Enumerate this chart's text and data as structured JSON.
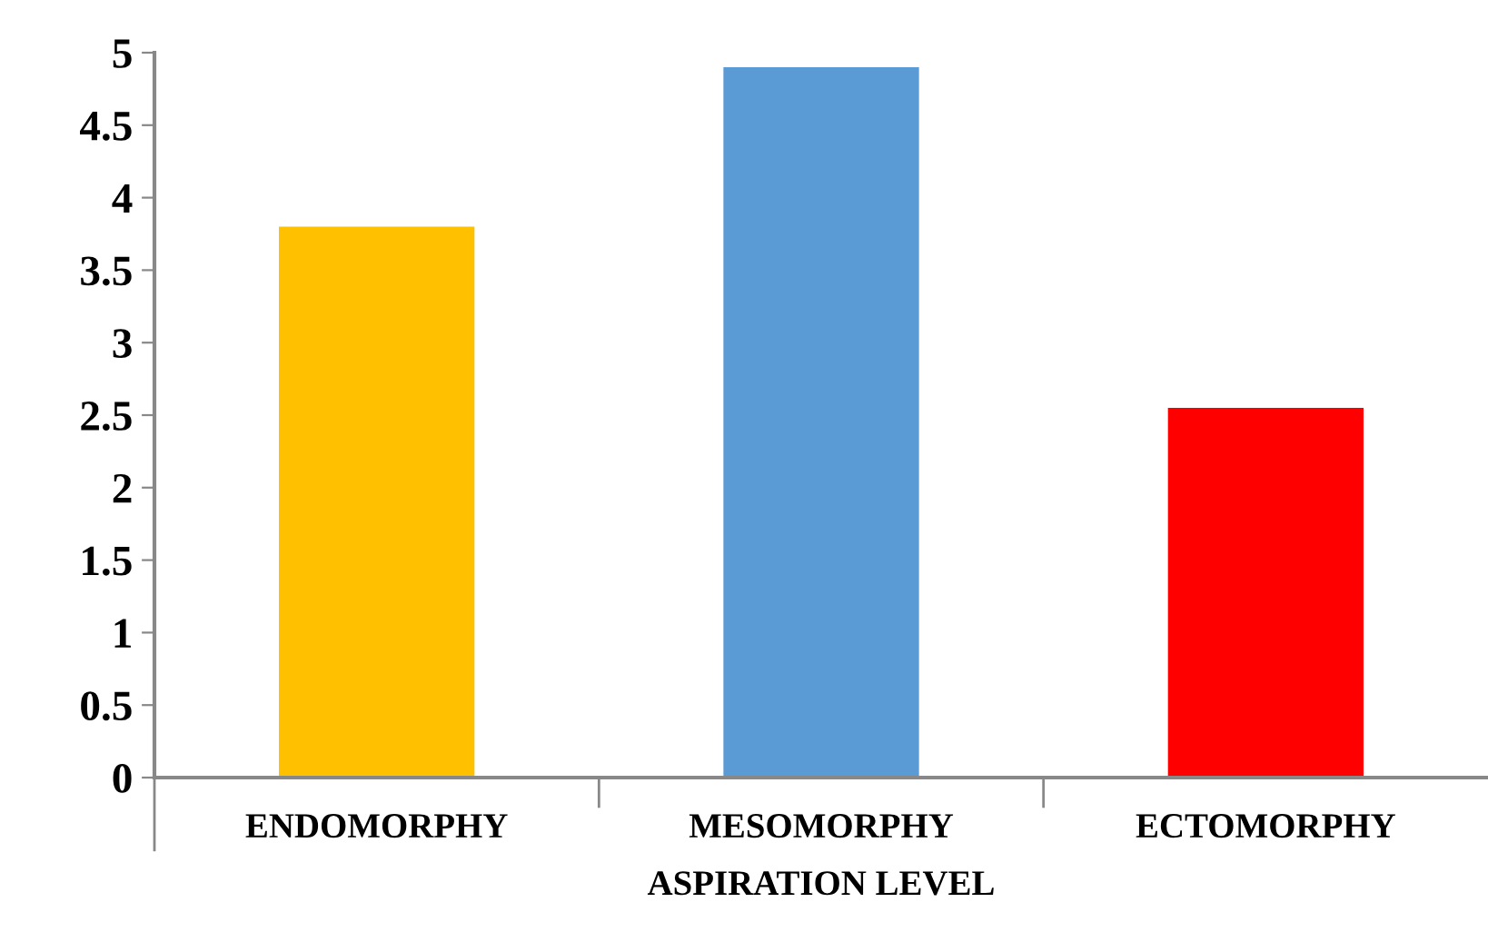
{
  "chart_data": {
    "type": "bar",
    "xlabel": "ASPIRATION LEVEL",
    "categories": [
      "ENDOMORPHY",
      "MESOMORPHY",
      "ECTOMORPHY"
    ],
    "values": [
      3.8,
      4.9,
      2.55
    ],
    "colors": [
      "#ffc000",
      "#5b9bd5",
      "#ff0000"
    ],
    "ylim": [
      0,
      5
    ],
    "yticks": [
      0,
      0.5,
      1,
      1.5,
      2,
      2.5,
      3,
      3.5,
      4,
      4.5,
      5
    ],
    "grid": false
  }
}
